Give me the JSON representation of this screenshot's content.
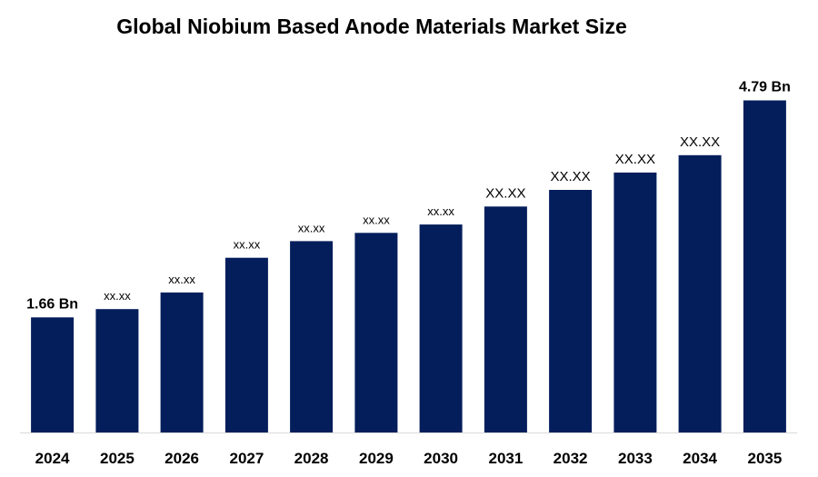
{
  "chart_data": {
    "type": "bar",
    "title": "Global Niobium Based Anode Materials Market Size",
    "xlabel": "",
    "ylabel": "",
    "ylim": [
      0,
      5.4
    ],
    "grid": false,
    "categories": [
      "2024",
      "2025",
      "2026",
      "2027",
      "2028",
      "2029",
      "2030",
      "2031",
      "2032",
      "2033",
      "2034",
      "2035"
    ],
    "values": [
      1.66,
      1.78,
      2.02,
      2.52,
      2.76,
      2.88,
      3.0,
      3.26,
      3.5,
      3.75,
      4.0,
      4.79
    ],
    "data_labels": [
      "1.66 Bn",
      "xx.xx",
      "xx.xx",
      "xx.xx",
      "xx.xx",
      "xx.xx",
      "xx.xx",
      "XX.XX",
      "XX.XX",
      "XX.XX",
      "XX.XX",
      "4.79 Bn"
    ],
    "bar_color": "#041e5c"
  }
}
